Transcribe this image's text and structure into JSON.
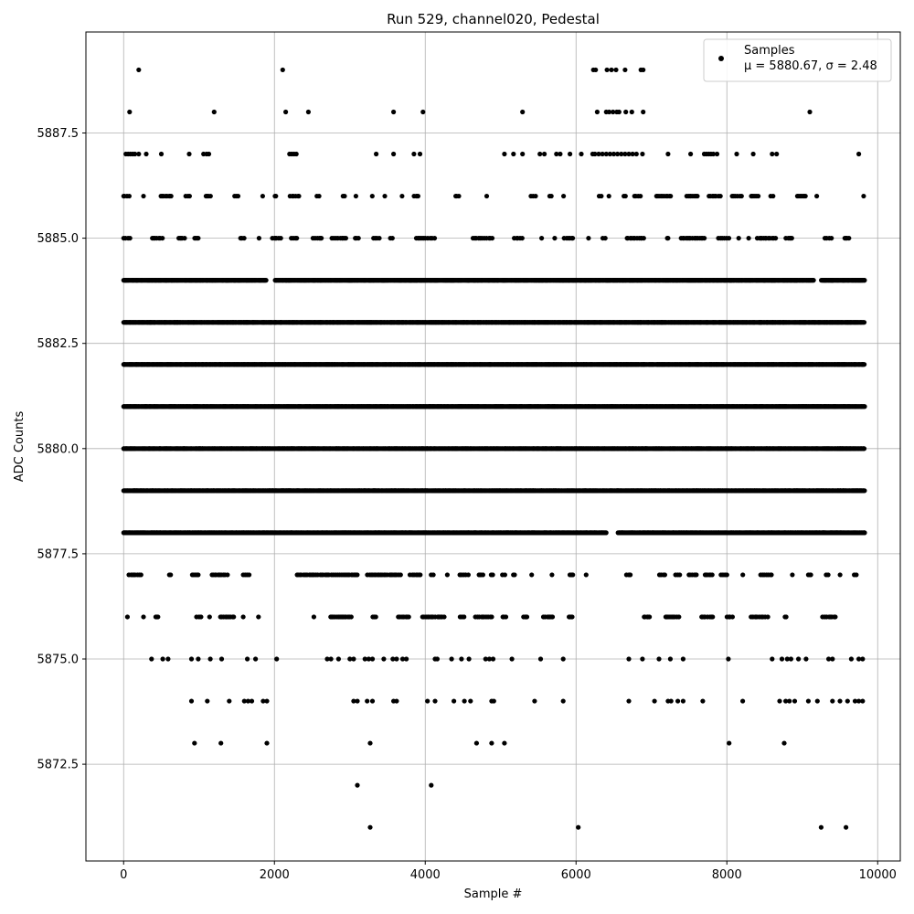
{
  "chart_data": {
    "type": "scatter",
    "title": "Run 529, channel020, Pedestal",
    "xlabel": "Sample #",
    "ylabel": "ADC Counts",
    "xlim": [
      -500,
      10300
    ],
    "ylim": [
      5870.2,
      5889.9
    ],
    "xticks": [
      0,
      2000,
      4000,
      6000,
      8000,
      10000
    ],
    "yticks": [
      5872.5,
      5875.0,
      5877.5,
      5880.0,
      5882.5,
      5885.0,
      5887.5
    ],
    "xtick_labels": [
      "0",
      "2000",
      "4000",
      "6000",
      "8000",
      "10000"
    ],
    "ytick_labels": [
      "5872.5",
      "5875.0",
      "5877.5",
      "5880.0",
      "5882.5",
      "5885.0",
      "5887.5"
    ],
    "grid": true,
    "legend_position": "top-right",
    "marker_color": "#000000",
    "series": [
      {
        "name": "Samples",
        "stats_label": "μ = 5880.67, σ = 2.48",
        "x_range": [
          0,
          9830
        ],
        "levels": [
          {
            "y": 5871,
            "density": "sparse",
            "x": [
              3270,
              6030,
              9250,
              9580
            ]
          },
          {
            "y": 5872,
            "density": "sparse",
            "x": [
              3100,
              4080
            ]
          },
          {
            "y": 5873,
            "density": "sparse",
            "x": [
              940,
              1290,
              1900,
              3270,
              4680,
              4880,
              5050,
              8030,
              8760
            ]
          },
          {
            "y": 5874,
            "density": "sparse",
            "x": [
              900,
              1110,
              1400,
              1600,
              1650,
              1700,
              1850,
              1900,
              3050,
              3100,
              3230,
              3300,
              3580,
              3620,
              4030,
              4130,
              4380,
              4520,
              4600,
              4880,
              4910,
              5450,
              5830,
              6700,
              7040,
              7220,
              7260,
              7350,
              7420,
              7680,
              8210,
              8700,
              8780,
              8830,
              8900,
              9080,
              9200,
              9400,
              9500,
              9600,
              9700,
              9750,
              9800
            ]
          },
          {
            "y": 5875,
            "density": "sparse",
            "x": [
              370,
              520,
              590,
              900,
              990,
              1150,
              1300,
              1640,
              1750,
              2030,
              2700,
              2750,
              2850,
              3000,
              3050,
              3200,
              3250,
              3300,
              3450,
              3570,
              3620,
              3700,
              3750,
              4130,
              4160,
              4350,
              4480,
              4580,
              4800,
              4850,
              4900,
              5150,
              5530,
              5830,
              6700,
              6880,
              7100,
              7250,
              7420,
              8020,
              8600,
              8730,
              8800,
              8850,
              8950,
              9050,
              9350,
              9400,
              9650,
              9750,
              9800
            ]
          },
          {
            "y": 5876,
            "density": "medium",
            "x_start": 50,
            "x_end": 9830,
            "gaps": [
              [
                2100,
                2500
              ],
              [
                6100,
                6900
              ],
              [
                7900,
                8000
              ]
            ]
          },
          {
            "y": 5877,
            "density": "medium",
            "x_start": 70,
            "x_end": 9830,
            "gaps": [
              [
                2050,
                2200
              ],
              [
                6350,
                6650
              ]
            ]
          },
          {
            "y": 5878,
            "density": "dense",
            "x_start": 0,
            "x_end": 9830,
            "gaps": [
              [
                6400,
                6550
              ]
            ]
          },
          {
            "y": 5879,
            "density": "dense",
            "x_start": 0,
            "x_end": 9830,
            "gaps": []
          },
          {
            "y": 5880,
            "density": "dense",
            "x_start": 0,
            "x_end": 9830,
            "gaps": []
          },
          {
            "y": 5881,
            "density": "dense",
            "x_start": 0,
            "x_end": 9830,
            "gaps": []
          },
          {
            "y": 5882,
            "density": "dense",
            "x_start": 0,
            "x_end": 9830,
            "gaps": []
          },
          {
            "y": 5883,
            "density": "dense",
            "x_start": 0,
            "x_end": 9830,
            "gaps": []
          },
          {
            "y": 5884,
            "density": "dense",
            "x_start": 0,
            "x_end": 9830,
            "gaps": [
              [
                1900,
                2000
              ],
              [
                9150,
                9250
              ]
            ]
          },
          {
            "y": 5885,
            "density": "medium",
            "x_start": 0,
            "x_end": 9650,
            "gaps": [
              [
                1350,
                1550
              ],
              [
                1900,
                1950
              ],
              [
                6900,
                7200
              ]
            ]
          },
          {
            "y": 5886,
            "density": "medium",
            "x_start": 0,
            "x_end": 9820,
            "gaps": [
              [
                1850,
                2000
              ],
              [
                2700,
                2900
              ],
              [
                3300,
                3450
              ],
              [
                3700,
                3850
              ],
              [
                4000,
                4400
              ],
              [
                4500,
                4800
              ],
              [
                4900,
                5250
              ],
              [
                9200,
                9800
              ]
            ]
          },
          {
            "y": 5887,
            "density": "sparse",
            "x": [
              30,
              60,
              90,
              120,
              150,
              200,
              300,
              500,
              870,
              1060,
              1100,
              1130,
              2200,
              2230,
              2260,
              2290,
              3350,
              3580,
              3850,
              3930,
              5050,
              5170,
              5290,
              5520,
              5580,
              5740,
              5790,
              5920,
              6070,
              6220,
              6250,
              6300,
              6350,
              6400,
              6450,
              6500,
              6550,
              6600,
              6650,
              6700,
              6750,
              6800,
              6880,
              7220,
              7520,
              7700,
              7730,
              7760,
              7790,
              7820,
              7870,
              8130,
              8350,
              8600,
              8660,
              9750
            ]
          },
          {
            "y": 5888,
            "density": "sparse",
            "x": [
              80,
              1200,
              2150,
              2450,
              3580,
              3970,
              5290,
              6280,
              6400,
              6440,
              6490,
              6540,
              6570,
              6660,
              6740,
              6890,
              9100
            ]
          },
          {
            "y": 5889,
            "density": "sparse",
            "x": [
              200,
              2110,
              6230,
              6260,
              6410,
              6470,
              6530,
              6650,
              6860,
              6890
            ]
          }
        ]
      }
    ]
  }
}
